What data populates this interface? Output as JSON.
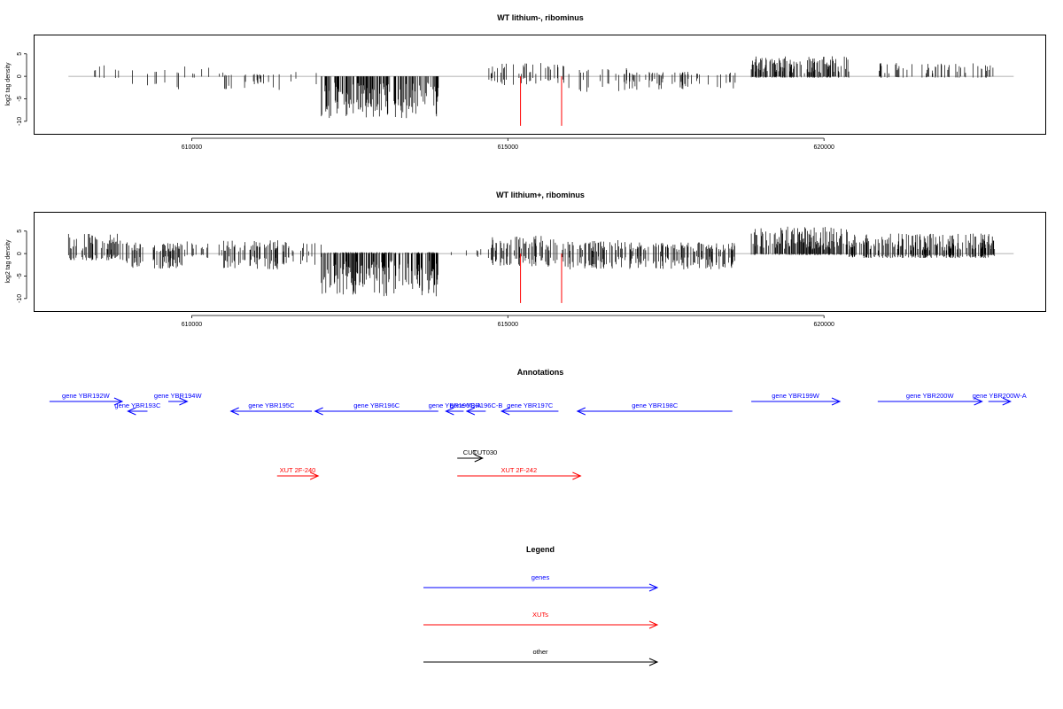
{
  "colors": {
    "gene": "#0000ff",
    "xut": "#ff0000",
    "other": "#000000",
    "baseline": "#999999",
    "marker": "#ff0000"
  },
  "x_ticks": [
    "610000",
    "615000",
    "620000"
  ],
  "y_ticks": [
    "5",
    "0",
    "-5",
    "-10"
  ],
  "chart_data": [
    {
      "type": "bar",
      "title": "WT lithium-, ribominus",
      "ylabel": "log2 tag density",
      "xlim": [
        607500,
        623500
      ],
      "ylim": [
        -12,
        8.5
      ],
      "markers_x": [
        615200,
        615850
      ],
      "marker_depth": -11,
      "signal_segments": [
        {
          "x": [
            608050,
            608950
          ],
          "pos": 3.5,
          "neg": -0.5,
          "density": 0.05
        },
        {
          "x": [
            608950,
            609850
          ],
          "pos": 2.0,
          "neg": -3.5,
          "density": 0.08
        },
        {
          "x": [
            609850,
            610500
          ],
          "pos": 2.2,
          "neg": -0.3,
          "density": 0.05
        },
        {
          "x": [
            610500,
            611500
          ],
          "pos": 0.5,
          "neg": -3.0,
          "density": 0.12
        },
        {
          "x": [
            611500,
            612050
          ],
          "pos": 1.0,
          "neg": -2.0,
          "density": 0.06
        },
        {
          "x": [
            612050,
            613900
          ],
          "pos": 0.0,
          "neg": -9.5,
          "density": 0.5
        },
        {
          "x": [
            614100,
            614700
          ],
          "pos": 1.0,
          "neg": -1.0,
          "density": 0.03
        },
        {
          "x": [
            614700,
            615900
          ],
          "pos": 3.0,
          "neg": -2.0,
          "density": 0.15
        },
        {
          "x": [
            615900,
            616900
          ],
          "pos": 2.0,
          "neg": -3.5,
          "density": 0.15
        },
        {
          "x": [
            616900,
            618600
          ],
          "pos": 1.0,
          "neg": -3.0,
          "density": 0.15
        },
        {
          "x": [
            618850,
            620400
          ],
          "pos": 4.5,
          "neg": -0.3,
          "density": 0.5
        },
        {
          "x": [
            620850,
            622700
          ],
          "pos": 3.0,
          "neg": -0.3,
          "density": 0.2
        }
      ]
    },
    {
      "type": "bar",
      "title": "WT lithium+, ribominus",
      "ylabel": "log2 tag density",
      "xlim": [
        607500,
        623500
      ],
      "ylim": [
        -12,
        8.5
      ],
      "markers_x": [
        615200,
        615850
      ],
      "marker_depth": -11,
      "signal_segments": [
        {
          "x": [
            608050,
            608950
          ],
          "pos": 4.5,
          "neg": -1.5,
          "density": 0.35
        },
        {
          "x": [
            608950,
            609850
          ],
          "pos": 2.5,
          "neg": -3.5,
          "density": 0.3
        },
        {
          "x": [
            609850,
            610500
          ],
          "pos": 3.0,
          "neg": -1.0,
          "density": 0.15
        },
        {
          "x": [
            610500,
            611500
          ],
          "pos": 3.0,
          "neg": -3.5,
          "density": 0.3
        },
        {
          "x": [
            611500,
            612050
          ],
          "pos": 2.5,
          "neg": -2.5,
          "density": 0.2
        },
        {
          "x": [
            612050,
            613900
          ],
          "pos": 0.3,
          "neg": -9.5,
          "density": 0.5
        },
        {
          "x": [
            613900,
            614700
          ],
          "pos": 1.0,
          "neg": -1.0,
          "density": 0.05
        },
        {
          "x": [
            614700,
            615900
          ],
          "pos": 4.0,
          "neg": -3.0,
          "density": 0.3
        },
        {
          "x": [
            615900,
            616900
          ],
          "pos": 3.0,
          "neg": -3.5,
          "density": 0.35
        },
        {
          "x": [
            616900,
            618600
          ],
          "pos": 2.5,
          "neg": -3.5,
          "density": 0.35
        },
        {
          "x": [
            618850,
            620400
          ],
          "pos": 6.0,
          "neg": -0.3,
          "density": 0.55
        },
        {
          "x": [
            620400,
            622700
          ],
          "pos": 4.5,
          "neg": -1.0,
          "density": 0.45
        }
      ]
    }
  ],
  "annotations": {
    "title": "Annotations",
    "items": [
      {
        "label": "gene YBR192W",
        "kind": "gene",
        "row": 0,
        "start": 607750,
        "end": 608900
      },
      {
        "label": "gene YBR193C",
        "kind": "gene",
        "row": 1,
        "start": 609300,
        "end": 608990
      },
      {
        "label": "gene YBR194W",
        "kind": "gene",
        "row": 0,
        "start": 609630,
        "end": 609930
      },
      {
        "label": "gene YBR195C",
        "kind": "gene",
        "row": 1,
        "start": 611900,
        "end": 610620
      },
      {
        "label": "gene YBR196C",
        "kind": "gene",
        "row": 1,
        "start": 613900,
        "end": 611950
      },
      {
        "label": "gene YBR196C-A",
        "kind": "gene",
        "row": 1,
        "start": 614300,
        "end": 614020
      },
      {
        "label": "gene YBR196C-B",
        "kind": "gene",
        "row": 1,
        "start": 614650,
        "end": 614350
      },
      {
        "label": "gene YBR197C",
        "kind": "gene",
        "row": 1,
        "start": 615800,
        "end": 614900
      },
      {
        "label": "gene YBR198C",
        "kind": "gene",
        "row": 1,
        "start": 618550,
        "end": 616100
      },
      {
        "label": "gene YBR199W",
        "kind": "gene",
        "row": 0,
        "start": 618850,
        "end": 620250
      },
      {
        "label": "gene YBR200W",
        "kind": "gene",
        "row": 0,
        "start": 620850,
        "end": 622500
      },
      {
        "label": "gene YBR200W-A",
        "kind": "gene",
        "row": 0,
        "start": 622600,
        "end": 622950
      },
      {
        "label": "CUT",
        "kind": "other",
        "row": 2,
        "start": 614200,
        "end": 614600
      },
      {
        "label": "CUT030",
        "kind": "other",
        "row": 2,
        "start": 614620,
        "end": 614650
      },
      {
        "label": "XUT 2F-240",
        "kind": "xut",
        "row": 3,
        "start": 611350,
        "end": 612000
      },
      {
        "label": "XUT 2F-242",
        "kind": "xut",
        "row": 3,
        "start": 614200,
        "end": 616150
      }
    ]
  },
  "legend": {
    "title": "Legend",
    "items": [
      {
        "label": "genes",
        "kind": "gene"
      },
      {
        "label": "XUTs",
        "kind": "xut"
      },
      {
        "label": "other",
        "kind": "other"
      }
    ]
  }
}
